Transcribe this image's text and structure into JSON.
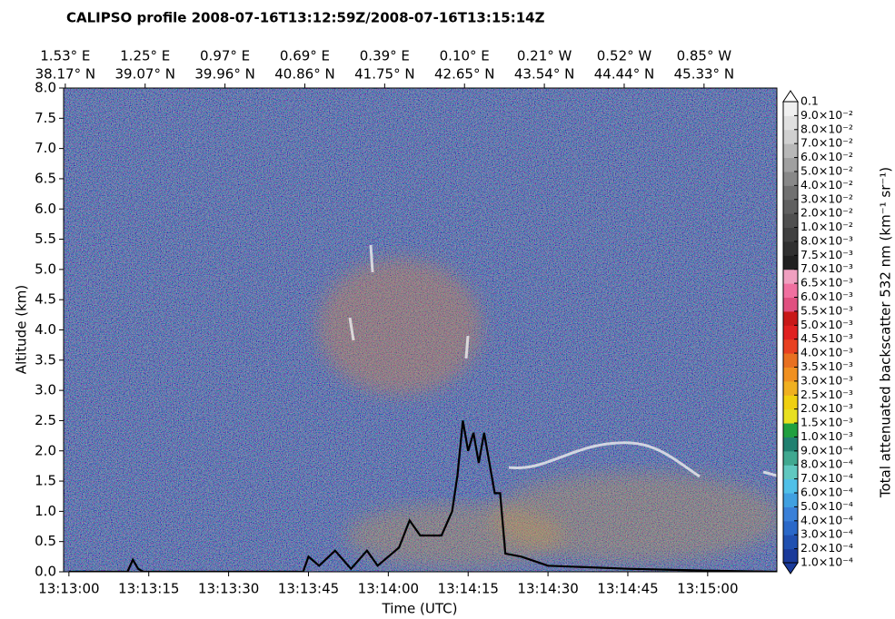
{
  "chart_data": {
    "type": "curtain",
    "title": "CALIPSO profile 2008-07-16T13:12:59Z/2008-07-16T13:15:14Z",
    "xlabel": "Time (UTC)",
    "ylabel": "Altitude (km)",
    "xlim": [
      "13:12:59",
      "13:15:13"
    ],
    "xticks": [
      "13:13:00",
      "13:13:15",
      "13:13:30",
      "13:13:45",
      "13:14:00",
      "13:14:15",
      "13:14:30",
      "13:14:45",
      "13:15:00"
    ],
    "top_ticks": [
      {
        "lon": "1.53° E",
        "lat": "38.17° N"
      },
      {
        "lon": "1.25° E",
        "lat": "39.07° N"
      },
      {
        "lon": "0.97° E",
        "lat": "39.96° N"
      },
      {
        "lon": "0.69° E",
        "lat": "40.86° N"
      },
      {
        "lon": "0.39° E",
        "lat": "41.75° N"
      },
      {
        "lon": "0.10° E",
        "lat": "42.65° N"
      },
      {
        "lon": "0.21° W",
        "lat": "43.54° N"
      },
      {
        "lon": "0.52° W",
        "lat": "44.44° N"
      },
      {
        "lon": "0.85° W",
        "lat": "45.33° N"
      }
    ],
    "ylim": [
      0,
      8
    ],
    "yticks": [
      {
        "value": 0,
        "label": "0.0"
      },
      0.5,
      {
        "value": 1,
        "label": "1.0"
      },
      1.5,
      {
        "value": 2,
        "label": "2.0"
      },
      2.5,
      {
        "value": 3,
        "label": "3.0"
      },
      3.5,
      {
        "value": 4,
        "label": "4.0"
      },
      4.5,
      {
        "value": 5,
        "label": "5.0"
      },
      5.5,
      {
        "value": 6,
        "label": "6.0"
      },
      6.5,
      {
        "value": 7,
        "label": "7.0"
      },
      7.5,
      {
        "value": 8,
        "label": "8.0"
      }
    ],
    "series": [
      {
        "color": "#000000",
        "x": [
          "13:13:00",
          "13:13:11",
          "13:13:12",
          "13:13:13",
          "13:13:14",
          "13:13:44",
          "13:13:45",
          "13:13:47",
          "13:13:50",
          "13:13:53",
          "13:13:56",
          "13:13:58",
          "13:14:02",
          "13:14:04",
          "13:14:06",
          "13:14:10",
          "13:14:12",
          "13:14:13",
          "13:14:14",
          "13:14:15",
          "13:14:16",
          "13:14:17",
          "13:14:18",
          "13:14:20",
          "13:14:21",
          "13:14:22",
          "13:14:25",
          "13:14:30",
          "13:14:45",
          "13:15:00",
          "13:15:13"
        ],
        "values": [
          0.0,
          0.0,
          0.2,
          0.05,
          0.0,
          0.0,
          0.25,
          0.1,
          0.35,
          0.05,
          0.35,
          0.1,
          0.4,
          0.85,
          0.6,
          0.6,
          1.0,
          1.6,
          2.5,
          2.0,
          2.3,
          1.8,
          2.3,
          1.3,
          1.3,
          0.3,
          0.25,
          0.1,
          0.05,
          0.02,
          0.0
        ]
      }
    ],
    "colorbar": {
      "label": "Total attenuated backscatter 532 nm (km⁻¹ sr⁻¹)",
      "ticks": [
        {
          "value": 0.0001,
          "label": "1.0×10⁻⁴"
        },
        {
          "value": 0.0002,
          "label": "2.0×10⁻⁴"
        },
        {
          "value": 0.0003,
          "label": "3.0×10⁻⁴"
        },
        {
          "value": 0.0004,
          "label": "4.0×10⁻⁴"
        },
        {
          "value": 0.0005,
          "label": "5.0×10⁻⁴"
        },
        {
          "value": 0.0006,
          "label": "6.0×10⁻⁴"
        },
        {
          "value": 0.0007,
          "label": "7.0×10⁻⁴"
        },
        {
          "value": 0.0008,
          "label": "8.0×10⁻⁴"
        },
        {
          "value": 0.0009,
          "label": "9.0×10⁻⁴"
        },
        {
          "value": 0.001,
          "label": "1.0×10⁻³"
        },
        {
          "value": 0.0015,
          "label": "1.5×10⁻³"
        },
        {
          "value": 0.002,
          "label": "2.0×10⁻³"
        },
        {
          "value": 0.0025,
          "label": "2.5×10⁻³"
        },
        {
          "value": 0.003,
          "label": "3.0×10⁻³"
        },
        {
          "value": 0.0035,
          "label": "3.5×10⁻³"
        },
        {
          "value": 0.004,
          "label": "4.0×10⁻³"
        },
        {
          "value": 0.0045,
          "label": "4.5×10⁻³"
        },
        {
          "value": 0.005,
          "label": "5.0×10⁻³"
        },
        {
          "value": 0.0055,
          "label": "5.5×10⁻³"
        },
        {
          "value": 0.006,
          "label": "6.0×10⁻³"
        },
        {
          "value": 0.0065,
          "label": "6.5×10⁻³"
        },
        {
          "value": 0.007,
          "label": "7.0×10⁻³"
        },
        {
          "value": 0.0075,
          "label": "7.5×10⁻³"
        },
        {
          "value": 0.008,
          "label": "8.0×10⁻³"
        },
        {
          "value": 0.01,
          "label": "1.0×10⁻²"
        },
        {
          "value": 0.02,
          "label": "2.0×10⁻²"
        },
        {
          "value": 0.03,
          "label": "3.0×10⁻²"
        },
        {
          "value": 0.04,
          "label": "4.0×10⁻²"
        },
        {
          "value": 0.05,
          "label": "5.0×10⁻²"
        },
        {
          "value": 0.06,
          "label": "6.0×10⁻²"
        },
        {
          "value": 0.07,
          "label": "7.0×10⁻²"
        },
        {
          "value": 0.08,
          "label": "8.0×10⁻²"
        },
        {
          "value": 0.09,
          "label": "9.0×10⁻²"
        },
        0.1
      ],
      "colors": [
        "#1a3a9a",
        "#2050b0",
        "#2a68c8",
        "#3a80d8",
        "#40a0e0",
        "#50c0e8",
        "#60c8c0",
        "#40a890",
        "#208070",
        "#20a040",
        "#e8e020",
        "#f0d010",
        "#f0b020",
        "#f09020",
        "#e87020",
        "#e84020",
        "#e02020",
        "#c81818",
        "#e05080",
        "#f070a0",
        "#f0a0c0",
        "#202020",
        "#303030",
        "#404040",
        "#505050",
        "#606060",
        "#707070",
        "#888888",
        "#a0a0a0",
        "#b8b8b8",
        "#d0d0d0",
        "#e0e0e0",
        "#f0f0f0"
      ]
    }
  }
}
